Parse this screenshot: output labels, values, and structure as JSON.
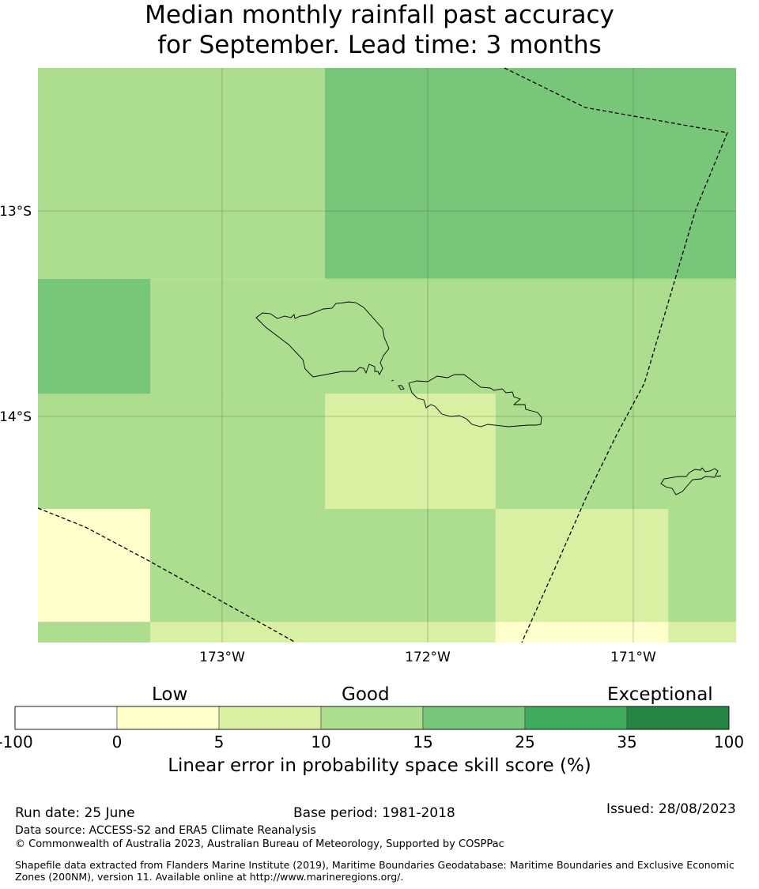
{
  "title": {
    "line1": "Median monthly rainfall past accuracy",
    "line2": "for September. Lead time: 3 months"
  },
  "map": {
    "lon_ticks": [
      "173°W",
      "172°W",
      "171°W"
    ],
    "lat_ticks": [
      "13°S",
      "14°S"
    ],
    "cells": [
      {
        "lon": [
          -173.9,
          -173.35
        ],
        "lat": [
          -13.33,
          -12.3
        ],
        "value": "10-15"
      },
      {
        "lon": [
          -173.35,
          -172.5
        ],
        "lat": [
          -13.33,
          -12.3
        ],
        "value": "10-15"
      },
      {
        "lon": [
          -172.5,
          -170.5
        ],
        "lat": [
          -13.33,
          -12.3
        ],
        "value": "15-25"
      },
      {
        "lon": [
          -173.9,
          -173.35
        ],
        "lat": [
          -13.89,
          -13.33
        ],
        "value": "15-25"
      },
      {
        "lon": [
          -173.35,
          -170.5
        ],
        "lat": [
          -13.89,
          -13.33
        ],
        "value": "10-15"
      },
      {
        "lon": [
          -173.9,
          -173.35
        ],
        "lat": [
          -14.45,
          -13.89
        ],
        "value": "10-15"
      },
      {
        "lon": [
          -173.35,
          -172.5
        ],
        "lat": [
          -14.45,
          -13.89
        ],
        "value": "10-15"
      },
      {
        "lon": [
          -172.5,
          -171.67
        ],
        "lat": [
          -14.45,
          -13.89
        ],
        "value": "5-10"
      },
      {
        "lon": [
          -171.67,
          -170.5
        ],
        "lat": [
          -14.45,
          -13.89
        ],
        "value": "10-15"
      },
      {
        "lon": [
          -173.9,
          -173.35
        ],
        "lat": [
          -15.0,
          -14.45
        ],
        "value": "0-5"
      },
      {
        "lon": [
          -173.35,
          -171.67
        ],
        "lat": [
          -15.0,
          -14.45
        ],
        "value": "10-15"
      },
      {
        "lon": [
          -171.67,
          -170.83
        ],
        "lat": [
          -15.0,
          -14.45
        ],
        "value": "5-10"
      },
      {
        "lon": [
          -170.83,
          -170.5
        ],
        "lat": [
          -15.0,
          -14.45
        ],
        "value": "10-15"
      },
      {
        "lon": [
          -173.9,
          -173.35
        ],
        "lat": [
          -15.1,
          -15.0
        ],
        "value": "10-15"
      },
      {
        "lon": [
          -173.35,
          -171.67
        ],
        "lat": [
          -15.1,
          -15.0
        ],
        "value": "5-10"
      },
      {
        "lon": [
          -171.67,
          -170.83
        ],
        "lat": [
          -15.1,
          -15.0
        ],
        "value": "0-5"
      },
      {
        "lon": [
          -170.83,
          -170.5
        ],
        "lat": [
          -15.1,
          -15.0
        ],
        "value": "5-10"
      }
    ]
  },
  "colorbar": {
    "category_labels": {
      "low": "Low",
      "good": "Good",
      "exceptional": "Exceptional"
    },
    "ticks": [
      "-100",
      "0",
      "5",
      "10",
      "15",
      "25",
      "35",
      "100"
    ],
    "colors": [
      "#ffffff",
      "#ffffcc",
      "#d9f0a3",
      "#addd8e",
      "#78c679",
      "#41ab5d",
      "#238443"
    ],
    "xlabel": "Linear error in probability space skill score (%)"
  },
  "footer": {
    "run_date": "Run date: 25 June",
    "base_period": "Base period: 1981-2018",
    "issued": "Issued: 28/08/2023",
    "data_source": "Data source: ACCESS-S2 and ERA5 Climate Reanalysis",
    "copyright": "© Commonwealth of Australia 2023, Australian Bureau of Meteorology, Supported by COSPPac",
    "shapefile": "Shapefile data extracted from Flanders Marine Institute (2019), Maritime Boundaries Geodatabase: Maritime Boundaries and Exclusive Economic Zones (200NM), version 11. Available online at http://www.marineregions.org/."
  }
}
